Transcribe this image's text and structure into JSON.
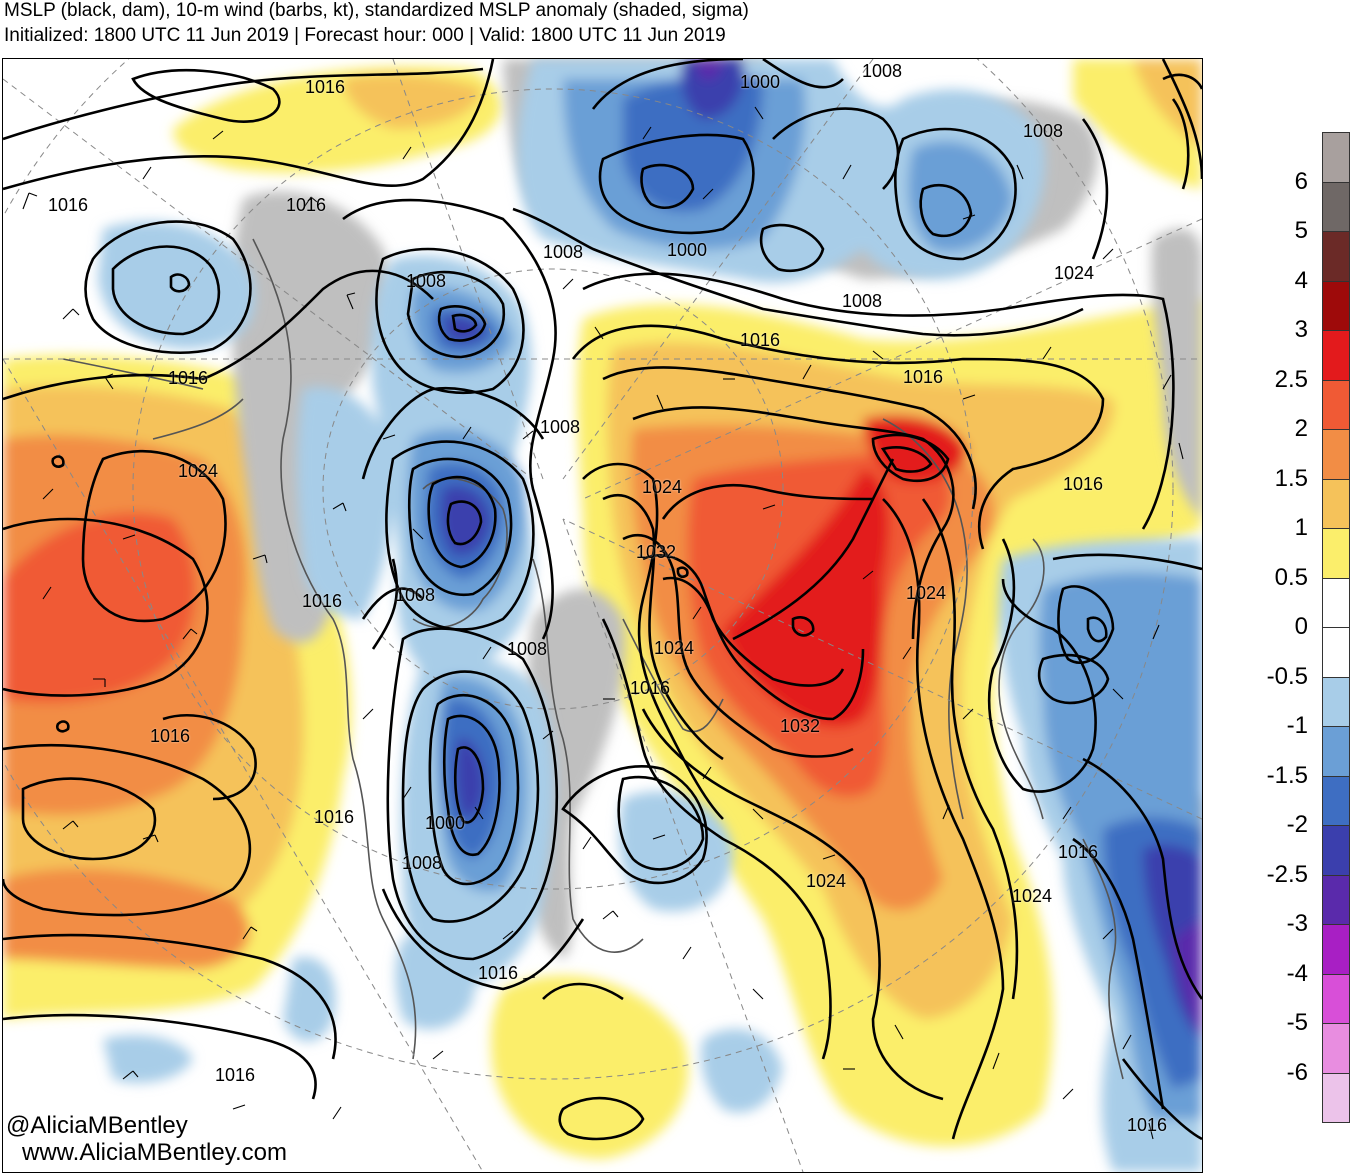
{
  "title": {
    "line1": "MSLP (black, dam), 10-m wind (barbs, kt), standardized MSLP anomaly (shaded, sigma)",
    "line2": "Initialized: 1800 UTC 11 Jun 2019 | Forecast hour: 000 | Valid: 1800 UTC 11 Jun 2019"
  },
  "credit": {
    "handle": "@AliciaMBentley",
    "website": "www.AliciaMBentley.com"
  },
  "colorbar": {
    "labels": [
      "6",
      "5",
      "4",
      "3",
      "2.5",
      "2",
      "1.5",
      "1",
      "0.5",
      "0",
      "-0.5",
      "-1",
      "-1.5",
      "-2",
      "-2.5",
      "-3",
      "-4",
      "-5",
      "-6"
    ],
    "colors": [
      "#a8a09e",
      "#6f6866",
      "#6b2a27",
      "#9e0a0a",
      "#e31a1c",
      "#f05a35",
      "#f28d45",
      "#f5c25a",
      "#fbee6b",
      "#ffffff",
      "#ffffff",
      "#a8cde8",
      "#6b9fd6",
      "#3e6ec2",
      "#3b3fad",
      "#5a2aab",
      "#a81fc4",
      "#d84fd8",
      "#e88de0",
      "#ecc3ea"
    ]
  },
  "isobar_labels": [
    "1016",
    "1016",
    "1016",
    "1016",
    "1024",
    "1016",
    "1016",
    "1016",
    "1016",
    "1008",
    "1008",
    "1008",
    "1008",
    "1008",
    "1000",
    "1008",
    "1016",
    "1000",
    "1008",
    "1000",
    "1008",
    "1016",
    "1024",
    "1016",
    "1032",
    "1024",
    "1016",
    "1032",
    "1024",
    "1024",
    "1016",
    "1024",
    "1016",
    "1024",
    "1008",
    "1016"
  ]
}
